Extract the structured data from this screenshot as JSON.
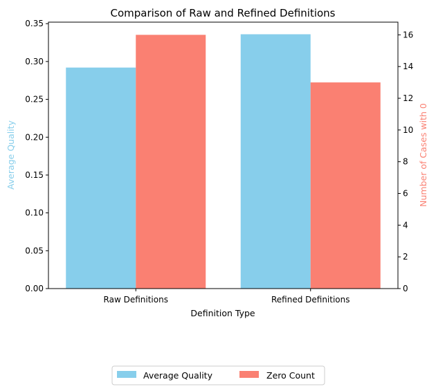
{
  "chart_data": {
    "type": "bar",
    "title": "Comparison of Raw and Refined Definitions",
    "xlabel": "Definition Type",
    "categories": [
      "Raw Definitions",
      "Refined Definitions"
    ],
    "series": [
      {
        "name": "Average Quality",
        "axis": "left",
        "color": "#87CEEB",
        "values": [
          0.292,
          0.336
        ]
      },
      {
        "name": "Zero Count",
        "axis": "right",
        "color": "#FA8072",
        "values": [
          16,
          13
        ]
      }
    ],
    "left_axis": {
      "label": "Average Quality",
      "label_color": "#87CEEB",
      "ylim": [
        0,
        0.352
      ],
      "ticks": [
        "0.00",
        "0.05",
        "0.10",
        "0.15",
        "0.20",
        "0.25",
        "0.30",
        "0.35"
      ]
    },
    "right_axis": {
      "label": "Number of Cases with 0",
      "label_color": "#FA8072",
      "ylim": [
        0,
        16.8
      ],
      "ticks": [
        "0",
        "2",
        "4",
        "6",
        "8",
        "10",
        "12",
        "14",
        "16"
      ]
    },
    "legend": {
      "placement": "bottom-center",
      "entries": [
        "Average Quality",
        "Zero Count"
      ]
    },
    "grid": false
  }
}
